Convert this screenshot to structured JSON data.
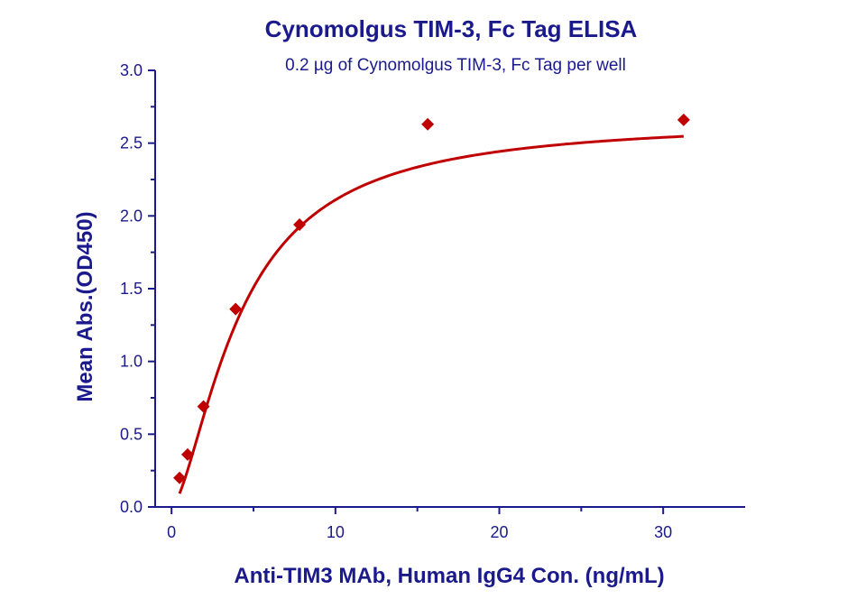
{
  "colors": {
    "text": "#1a1a8c",
    "axis": "#1a1a8c",
    "series": "#c00000"
  },
  "chart_data": {
    "type": "scatter",
    "title": "Cynomolgus TIM-3, Fc Tag ELISA",
    "subtitle": "0.2 µg of Cynomolgus TIM-3, Fc Tag per well",
    "xlabel": "Anti-TIM3 MAb, Human IgG4 Con. (ng/mL)",
    "ylabel": "Mean Abs.(OD450)",
    "xlim": [
      -1,
      35
    ],
    "ylim": [
      0,
      3
    ],
    "xticks": [
      0,
      10,
      20,
      30
    ],
    "xtick_labels": [
      "0",
      "10",
      "20",
      "30"
    ],
    "yticks": [
      0,
      0.5,
      1,
      1.5,
      2,
      2.5,
      3
    ],
    "ytick_labels": [
      "0.0",
      "0.5",
      "1.0",
      "1.5",
      "2.0",
      "2.5",
      "3.0"
    ],
    "grid": false,
    "series": [
      {
        "marker": "diamond",
        "fit_line": true,
        "points": [
          {
            "x": 0.49,
            "y": 0.2
          },
          {
            "x": 0.98,
            "y": 0.36
          },
          {
            "x": 1.95,
            "y": 0.69
          },
          {
            "x": 3.91,
            "y": 1.36
          },
          {
            "x": 7.81,
            "y": 1.94
          },
          {
            "x": 15.63,
            "y": 2.63
          },
          {
            "x": 31.25,
            "y": 2.66
          }
        ]
      }
    ]
  }
}
